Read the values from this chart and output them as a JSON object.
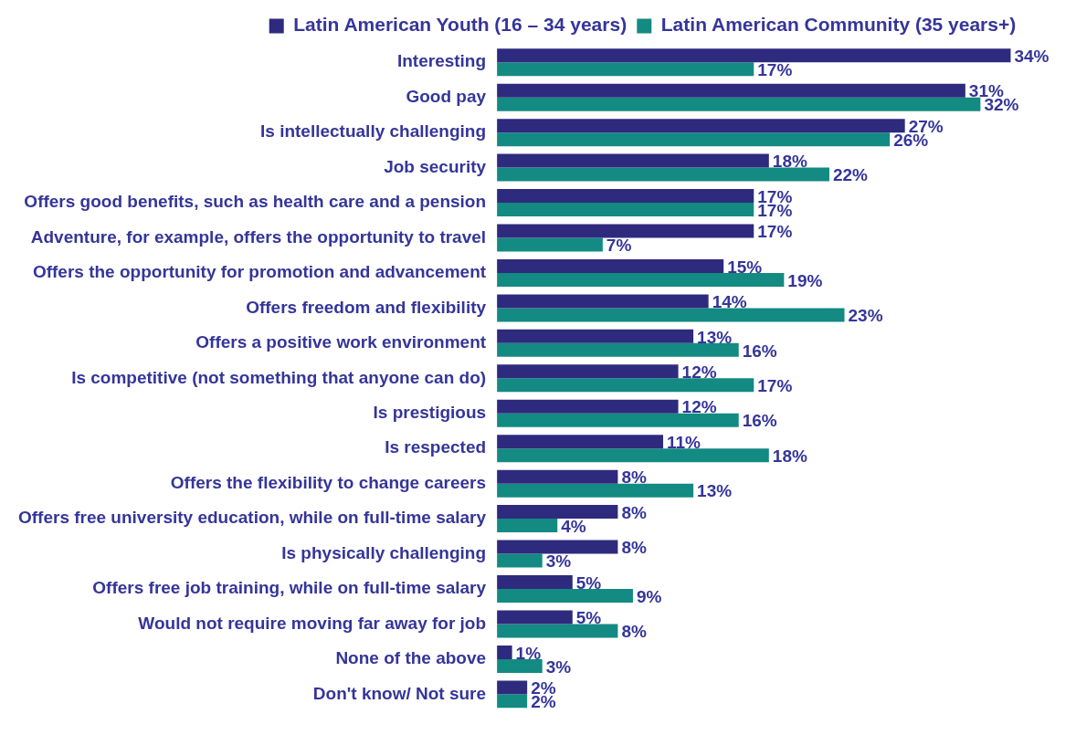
{
  "chart_data": {
    "type": "bar",
    "orientation": "horizontal",
    "legend": "top",
    "categories": [
      "Interesting",
      "Good pay",
      "Is intellectually challenging",
      "Job security",
      "Offers good benefits, such as health care and a pension",
      "Adventure, for example, offers the opportunity to travel",
      "Offers the opportunity for promotion and advancement",
      "Offers freedom and flexibility",
      "Offers a positive work environment",
      "Is competitive (not something that anyone can do)",
      "Is prestigious",
      "Is respected",
      "Offers the flexibility to change careers",
      "Offers free university education, while on full-time salary",
      "Is physically challenging",
      "Offers free job training, while on full-time salary",
      "Would not require moving far away for job",
      "None of the above",
      "Don't know/ Not sure"
    ],
    "series": [
      {
        "name": "Latin American Youth (16 – 34 years)",
        "color": "#2e2a7e",
        "values": [
          34,
          31,
          27,
          18,
          17,
          17,
          15,
          14,
          13,
          12,
          12,
          11,
          8,
          8,
          8,
          5,
          5,
          1,
          2
        ],
        "value_labels": [
          "34%",
          "31%",
          "27%",
          "18%",
          "17%",
          "17%",
          "15%",
          "14%",
          "13%",
          "12%",
          "12%",
          "11%",
          "8%",
          "8%",
          "8%",
          "5%",
          "5%",
          "1%",
          "2%"
        ]
      },
      {
        "name": "Latin American Community (35 years+)",
        "color": "#138a82",
        "values": [
          17,
          32,
          26,
          22,
          17,
          7,
          19,
          23,
          16,
          17,
          16,
          18,
          13,
          4,
          3,
          9,
          8,
          3,
          2
        ],
        "value_labels": [
          "17%",
          "32%",
          "26%",
          "22%",
          "17%",
          "7%",
          "19%",
          "23%",
          "16%",
          "17%",
          "16%",
          "18%",
          "13%",
          "4%",
          "3%",
          "9%",
          "8%",
          "3%",
          "2%"
        ]
      }
    ]
  }
}
